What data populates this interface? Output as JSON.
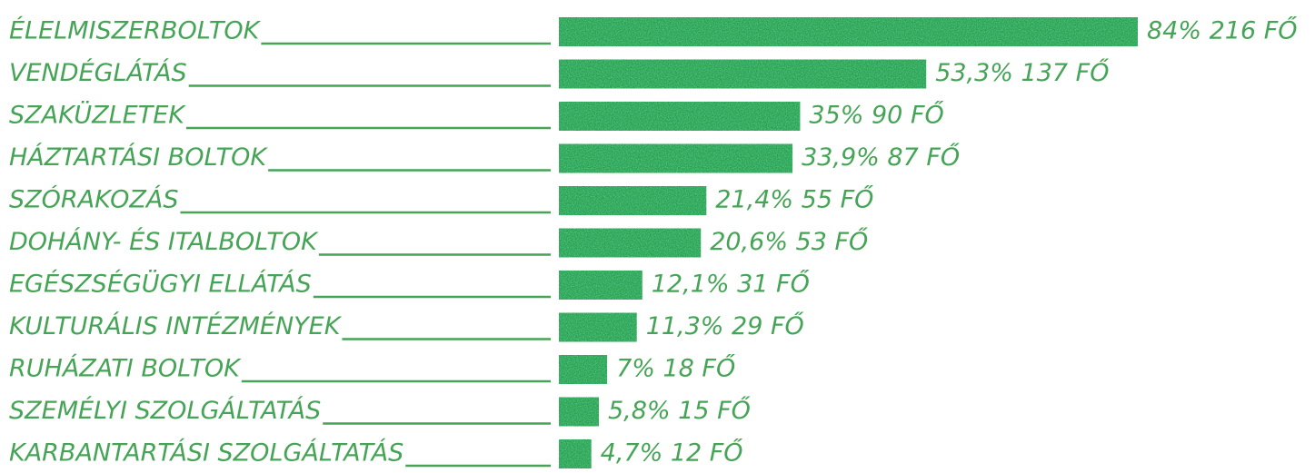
{
  "chart_data": {
    "type": "bar",
    "orientation": "horizontal",
    "color": "#2f9d4c",
    "categories": [
      "ÉLELMISZERBOLTOK",
      "VENDÉGLÁTÁS",
      "SZAKÜZLETEK",
      "HÁZTARTÁSI BOLTOK",
      "SZÓRAKOZÁS",
      "DOHÁNY- ÉS ITALBOLTOK",
      "EGÉSZSÉGÜGYI ELLÁTÁS",
      "KULTURÁLIS INTÉZMÉNYEK",
      "RUHÁZATI BOLTOK",
      "SZEMÉLYI  SZOLGÁLTATÁS",
      "KARBANTARTÁSI SZOLGÁLTATÁS"
    ],
    "values": [
      84,
      53.3,
      35,
      33.9,
      21.4,
      20.6,
      12.1,
      11.3,
      7,
      5.8,
      4.7
    ],
    "value_labels": [
      "84% 216 FŐ",
      "53,3% 137 FŐ",
      "35% 90 FŐ",
      "33,9% 87 FŐ",
      "21,4% 55 FŐ",
      "20,6% 53 FŐ",
      "12,1% 31 FŐ",
      "11,3% 29 FŐ",
      "7% 18 FŐ",
      "5,8% 15 FŐ",
      "4,7% 12 FŐ"
    ]
  }
}
